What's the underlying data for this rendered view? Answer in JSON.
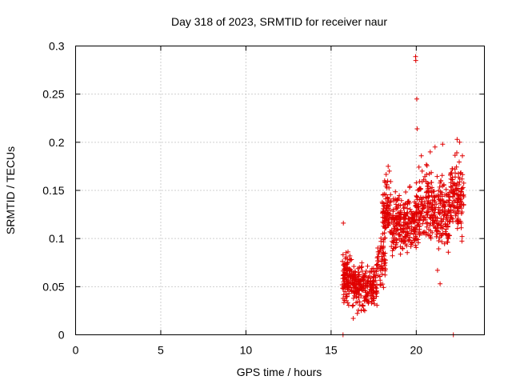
{
  "chart_data": {
    "type": "scatter",
    "title": "Day 318 of 2023, SRMTID for receiver naur",
    "xlabel": "GPS time / hours",
    "ylabel": "SRMTID / TECUs",
    "xlim": [
      0,
      24
    ],
    "ylim": [
      0,
      0.3
    ],
    "xticks": [
      0,
      5,
      10,
      15,
      20
    ],
    "yticks": [
      0,
      0.05,
      0.1,
      0.15,
      0.2,
      0.25,
      0.3
    ],
    "xtick_labels": [
      "0",
      "5",
      "10",
      "15",
      "20"
    ],
    "ytick_labels": [
      "0",
      "0.05",
      "0.1",
      "0.15",
      "0.2",
      "0.25",
      "0.3"
    ],
    "grid": true,
    "marker": "+",
    "series": [
      {
        "name": "SRMTID",
        "color": "#e00000",
        "points": [
          [
            15.7,
            0.0
          ],
          [
            22.18,
            0.0
          ],
          [
            15.72,
            0.116
          ],
          [
            19.96,
            0.289
          ],
          [
            19.97,
            0.285
          ],
          [
            20.03,
            0.245
          ],
          [
            20.05,
            0.214
          ],
          [
            18.35,
            0.175
          ],
          [
            18.42,
            0.17
          ],
          [
            20.3,
            0.186
          ],
          [
            20.82,
            0.19
          ],
          [
            21.1,
            0.195
          ],
          [
            21.55,
            0.198
          ],
          [
            22.4,
            0.203
          ],
          [
            22.55,
            0.2
          ],
          [
            21.4,
            0.053
          ],
          [
            21.25,
            0.067
          ],
          [
            18.6,
            0.082
          ],
          [
            16.3,
            0.017
          ]
        ],
        "clusters": [
          {
            "x": [
              15.65,
              16.2
            ],
            "y": [
              0.025,
              0.095
            ],
            "n": 110
          },
          {
            "x": [
              16.2,
              17.7
            ],
            "y": [
              0.02,
              0.08
            ],
            "n": 230
          },
          {
            "x": [
              17.7,
              18.2
            ],
            "y": [
              0.04,
              0.11
            ],
            "n": 60
          },
          {
            "x": [
              18.0,
              18.5
            ],
            "y": [
              0.085,
              0.175
            ],
            "n": 90
          },
          {
            "x": [
              18.5,
              19.2
            ],
            "y": [
              0.07,
              0.16
            ],
            "n": 110
          },
          {
            "x": [
              19.2,
              20.0
            ],
            "y": [
              0.07,
              0.16
            ],
            "n": 130
          },
          {
            "x": [
              20.0,
              21.0
            ],
            "y": [
              0.08,
              0.19
            ],
            "n": 160
          },
          {
            "x": [
              21.0,
              22.0
            ],
            "y": [
              0.07,
              0.18
            ],
            "n": 150
          },
          {
            "x": [
              22.0,
              22.8
            ],
            "y": [
              0.09,
              0.2
            ],
            "n": 130
          }
        ]
      }
    ]
  }
}
